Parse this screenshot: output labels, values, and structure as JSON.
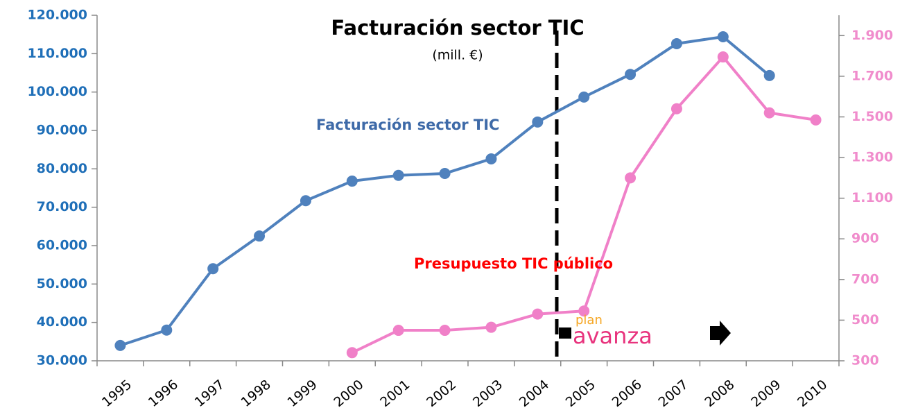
{
  "chart_data": {
    "type": "line",
    "title": "Facturación sector TIC",
    "subtitle": "(mill. €)",
    "categories": [
      "1995",
      "1996",
      "1997",
      "1998",
      "1999",
      "2000",
      "2001",
      "2002",
      "2003",
      "2004",
      "2005",
      "2006",
      "2007",
      "2008",
      "2009",
      "2010"
    ],
    "series": [
      {
        "name": "Facturación sector TIC",
        "color": "#4f81bd",
        "values": [
          34000,
          38000,
          54000,
          62500,
          71700,
          76800,
          78300,
          78800,
          82600,
          92200,
          98700,
          104600,
          112600,
          114400,
          104300,
          null
        ]
      },
      {
        "name": "Presupuesto TIC público",
        "color": "#f080c8",
        "axis": "y2",
        "values": [
          null,
          null,
          null,
          null,
          null,
          340,
          450,
          450,
          465,
          530,
          545,
          1200,
          1540,
          1795,
          1520,
          1485
        ]
      }
    ],
    "ylim": [
      30000,
      120000
    ],
    "yticks": [
      {
        "value": 30000,
        "label": "30.000"
      },
      {
        "value": 40000,
        "label": "40.000"
      },
      {
        "value": 50000,
        "label": "50.000"
      },
      {
        "value": 60000,
        "label": "60.000"
      },
      {
        "value": 70000,
        "label": "70.000"
      },
      {
        "value": 80000,
        "label": "80.000"
      },
      {
        "value": 90000,
        "label": "90.000"
      },
      {
        "value": 100000,
        "label": "100.000"
      },
      {
        "value": 110000,
        "label": "110.000"
      },
      {
        "value": 120000,
        "label": "120.000"
      }
    ],
    "y2lim": [
      300,
      2000
    ],
    "y2ticks": [
      300,
      500,
      700,
      900,
      {
        "value": 1100,
        "label": "1.100"
      },
      {
        "value": 1300,
        "label": "1.300"
      },
      {
        "value": 1500,
        "label": "1.500"
      },
      {
        "value": 1700,
        "label": "1.700"
      },
      {
        "value": 1900,
        "label": "1.900"
      }
    ],
    "annotations": [
      "plan",
      "avanza"
    ]
  }
}
